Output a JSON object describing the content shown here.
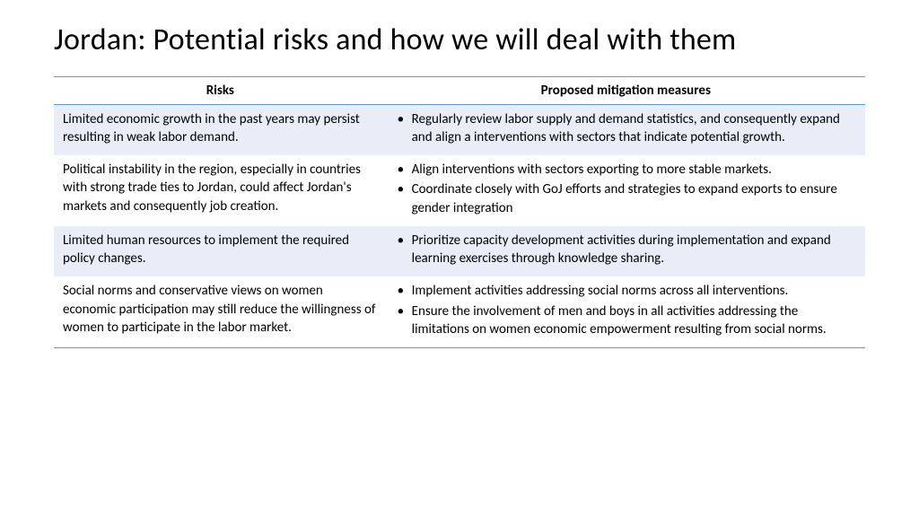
{
  "title": "Jordan: Potential risks and how we will deal with them",
  "table": {
    "headers": {
      "risks": "Risks",
      "mitigation": "Proposed mitigation measures"
    },
    "rows": [
      {
        "risk": "Limited economic growth in the past years may persist resulting in weak labor demand.",
        "mitigations": [
          "Regularly review labor supply and demand statistics, and consequently expand and align a interventions with sectors that indicate potential growth."
        ],
        "alt": true
      },
      {
        "risk": "Political instability in the region, especially in countries with strong trade ties to Jordan, could affect Jordan's markets and consequently job creation.",
        "mitigations": [
          "Align interventions with sectors exporting to more stable markets.",
          "Coordinate closely with GoJ efforts and strategies to expand exports to ensure gender integration"
        ],
        "alt": false
      },
      {
        "risk": "Limited human resources to implement the required policy changes.",
        "mitigations": [
          "Prioritize capacity development activities during implementation and expand learning exercises through knowledge sharing."
        ],
        "alt": true
      },
      {
        "risk": "Social norms and conservative views on women economic participation may still reduce the willingness of women to participate in the labor market.",
        "mitigations": [
          "Implement activities addressing social norms across all interventions.",
          "Ensure the involvement of men and boys in all activities addressing the limitations on women economic empowerment resulting from social norms."
        ],
        "alt": false
      }
    ]
  },
  "style": {
    "accent_color": "#5b9bd5",
    "alt_row_color": "#e8edf7",
    "background_color": "#ffffff",
    "title_fontsize": 34,
    "body_fontsize": 15,
    "col_widths": [
      "41%",
      "59%"
    ]
  }
}
